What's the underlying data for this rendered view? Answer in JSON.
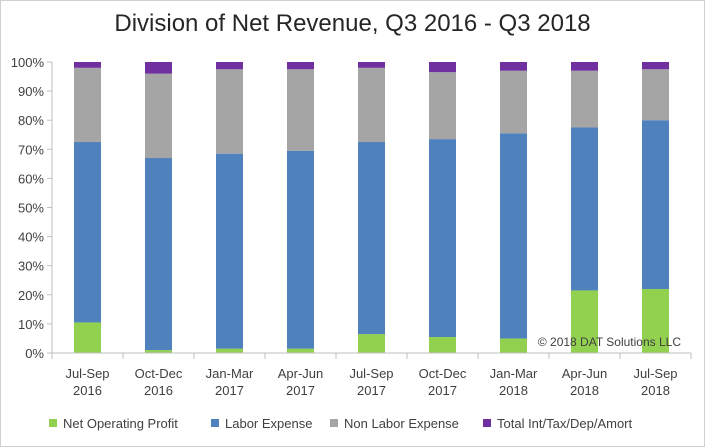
{
  "chart_data": {
    "type": "bar",
    "stacked": true,
    "title": "Division of Net Revenue, Q3 2016 - Q3 2018",
    "xlabel": "",
    "ylabel": "",
    "ylim": [
      0,
      100
    ],
    "y_ticks": [
      "0%",
      "10%",
      "20%",
      "30%",
      "40%",
      "50%",
      "60%",
      "70%",
      "80%",
      "90%",
      "100%"
    ],
    "categories": [
      [
        "Jul-Sep",
        "2016"
      ],
      [
        "Oct-Dec",
        "2016"
      ],
      [
        "Jan-Mar",
        "2017"
      ],
      [
        "Apr-Jun",
        "2017"
      ],
      [
        "Jul-Sep",
        "2017"
      ],
      [
        "Oct-Dec",
        "2017"
      ],
      [
        "Jan-Mar",
        "2018"
      ],
      [
        "Apr-Jun",
        "2018"
      ],
      [
        "Jul-Sep",
        "2018"
      ]
    ],
    "series": [
      {
        "name": "Net Operating Profit",
        "color": "#92d050",
        "values": [
          10.5,
          1.0,
          1.5,
          1.5,
          6.5,
          5.5,
          5.0,
          21.5,
          22.0
        ]
      },
      {
        "name": "Labor Expense",
        "color": "#4f81bd",
        "values": [
          62.0,
          66.0,
          67.0,
          68.0,
          66.0,
          68.0,
          70.5,
          56.0,
          58.0
        ]
      },
      {
        "name": "Non Labor Expense",
        "color": "#a5a5a5",
        "values": [
          25.5,
          29.0,
          29.0,
          28.0,
          25.5,
          23.0,
          21.5,
          19.5,
          17.5
        ]
      },
      {
        "name": "Total Int/Tax/Dep/Amort",
        "color": "#7030a0",
        "values": [
          2.0,
          4.0,
          2.5,
          2.5,
          2.0,
          3.5,
          3.0,
          3.0,
          2.5
        ]
      }
    ],
    "legend_position": "bottom",
    "grid": false,
    "annotation": "© 2018 DAT Solutions LLC"
  }
}
